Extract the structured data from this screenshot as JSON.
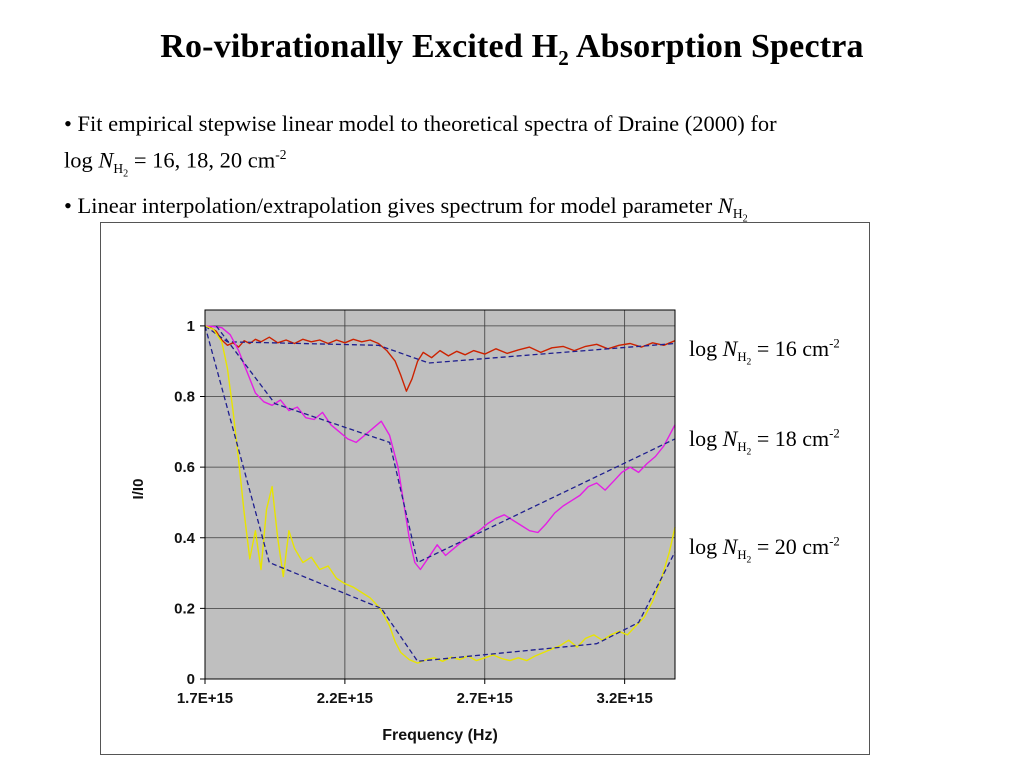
{
  "slide": {
    "title": {
      "pre": "Ro-vibrationally Excited H",
      "sub": "2",
      "post": " Absorption Spectra"
    },
    "bullets": {
      "b1_line1": "• Fit empirical stepwise linear model to theoretical spectra of Draine (2000) for",
      "b1_line2_pre": "log ",
      "b1_N": "N",
      "b1_sub": "H",
      "b1_subsub": "2",
      "b1_line2_mid": " = 16, 18, 20 cm",
      "b1_sup": "-2",
      "b2_pre": "• Linear interpolation/extrapolation gives spectrum for model parameter ",
      "b2_N": "N",
      "b2_sub": "H",
      "b2_subsub": "2"
    }
  },
  "series_labels": [
    {
      "pre": "log ",
      "N": "N",
      "sub": "H",
      "subsub": "2",
      "mid": " = 16 cm",
      "sup": "-2"
    },
    {
      "pre": "log ",
      "N": "N",
      "sub": "H",
      "subsub": "2",
      "mid": " = 18 cm",
      "sup": "-2"
    },
    {
      "pre": "log ",
      "N": "N",
      "sub": "H",
      "subsub": "2",
      "mid": " = 20 cm",
      "sup": "-2"
    }
  ],
  "chart_data": {
    "type": "line",
    "title": "",
    "xlabel": "Frequency (Hz)",
    "ylabel": "I/I0",
    "x_scale_note": "x values in units of 1e15 Hz",
    "xlim": [
      1.7,
      3.38
    ],
    "ylim": [
      0,
      1.045
    ],
    "grid": true,
    "legend_position": "right-annotations",
    "colors": {
      "plot_bg": "#bfbfbf",
      "grid": "#3c3c3c",
      "axis": "#000000"
    },
    "x_ticks": [
      {
        "v": 1.7,
        "label": "1.7E+15"
      },
      {
        "v": 2.2,
        "label": "2.2E+15"
      },
      {
        "v": 2.7,
        "label": "2.7E+15"
      },
      {
        "v": 3.2,
        "label": "3.2E+15"
      }
    ],
    "y_ticks": [
      {
        "v": 1,
        "label": "1"
      },
      {
        "v": 0.8,
        "label": "0.8"
      },
      {
        "v": 0.6,
        "label": "0.6"
      },
      {
        "v": 0.4,
        "label": "0.4"
      },
      {
        "v": 0.2,
        "label": "0.2"
      },
      {
        "v": 0,
        "label": "0"
      }
    ],
    "series": [
      {
        "name": "Draine (2000) spectrum log N_H2 = 16 cm-2",
        "color": "#cc2200",
        "width": 1.4,
        "dash": null,
        "points": [
          [
            1.7,
            1.0
          ],
          [
            1.72,
            0.995
          ],
          [
            1.74,
            0.985
          ],
          [
            1.76,
            0.96
          ],
          [
            1.78,
            0.945
          ],
          [
            1.8,
            0.952
          ],
          [
            1.82,
            0.94
          ],
          [
            1.84,
            0.958
          ],
          [
            1.86,
            0.95
          ],
          [
            1.88,
            0.962
          ],
          [
            1.9,
            0.955
          ],
          [
            1.93,
            0.968
          ],
          [
            1.96,
            0.952
          ],
          [
            1.99,
            0.96
          ],
          [
            2.02,
            0.95
          ],
          [
            2.05,
            0.962
          ],
          [
            2.08,
            0.955
          ],
          [
            2.11,
            0.96
          ],
          [
            2.14,
            0.95
          ],
          [
            2.17,
            0.96
          ],
          [
            2.2,
            0.952
          ],
          [
            2.23,
            0.962
          ],
          [
            2.26,
            0.955
          ],
          [
            2.29,
            0.96
          ],
          [
            2.32,
            0.95
          ],
          [
            2.35,
            0.93
          ],
          [
            2.38,
            0.9
          ],
          [
            2.4,
            0.86
          ],
          [
            2.42,
            0.815
          ],
          [
            2.44,
            0.85
          ],
          [
            2.46,
            0.9
          ],
          [
            2.48,
            0.925
          ],
          [
            2.51,
            0.91
          ],
          [
            2.54,
            0.93
          ],
          [
            2.57,
            0.915
          ],
          [
            2.6,
            0.928
          ],
          [
            2.63,
            0.918
          ],
          [
            2.66,
            0.93
          ],
          [
            2.7,
            0.92
          ],
          [
            2.74,
            0.935
          ],
          [
            2.78,
            0.922
          ],
          [
            2.82,
            0.932
          ],
          [
            2.86,
            0.94
          ],
          [
            2.9,
            0.925
          ],
          [
            2.94,
            0.938
          ],
          [
            2.98,
            0.942
          ],
          [
            3.02,
            0.93
          ],
          [
            3.06,
            0.942
          ],
          [
            3.1,
            0.948
          ],
          [
            3.14,
            0.935
          ],
          [
            3.18,
            0.945
          ],
          [
            3.22,
            0.95
          ],
          [
            3.26,
            0.94
          ],
          [
            3.3,
            0.952
          ],
          [
            3.34,
            0.945
          ],
          [
            3.38,
            0.958
          ]
        ]
      },
      {
        "name": "stepwise linear model log N_H2 = 16",
        "color": "#1f1f8f",
        "width": 1.3,
        "dash": "5,3",
        "points": [
          [
            1.7,
            1.0
          ],
          [
            1.78,
            0.955
          ],
          [
            2.32,
            0.945
          ],
          [
            2.5,
            0.895
          ],
          [
            3.38,
            0.95
          ]
        ]
      },
      {
        "name": "Draine (2000) spectrum log N_H2 = 18 cm-2",
        "color": "#e41ee4",
        "width": 1.4,
        "dash": null,
        "points": [
          [
            1.7,
            1.0
          ],
          [
            1.73,
            0.998
          ],
          [
            1.76,
            0.995
          ],
          [
            1.79,
            0.975
          ],
          [
            1.82,
            0.93
          ],
          [
            1.85,
            0.87
          ],
          [
            1.88,
            0.81
          ],
          [
            1.91,
            0.785
          ],
          [
            1.94,
            0.775
          ],
          [
            1.97,
            0.79
          ],
          [
            2.0,
            0.76
          ],
          [
            2.03,
            0.77
          ],
          [
            2.06,
            0.74
          ],
          [
            2.09,
            0.735
          ],
          [
            2.12,
            0.755
          ],
          [
            2.15,
            0.72
          ],
          [
            2.18,
            0.7
          ],
          [
            2.21,
            0.68
          ],
          [
            2.24,
            0.67
          ],
          [
            2.27,
            0.69
          ],
          [
            2.3,
            0.71
          ],
          [
            2.33,
            0.73
          ],
          [
            2.36,
            0.69
          ],
          [
            2.39,
            0.6
          ],
          [
            2.41,
            0.5
          ],
          [
            2.43,
            0.4
          ],
          [
            2.45,
            0.33
          ],
          [
            2.47,
            0.31
          ],
          [
            2.5,
            0.345
          ],
          [
            2.53,
            0.38
          ],
          [
            2.56,
            0.35
          ],
          [
            2.59,
            0.37
          ],
          [
            2.62,
            0.39
          ],
          [
            2.65,
            0.405
          ],
          [
            2.68,
            0.42
          ],
          [
            2.71,
            0.44
          ],
          [
            2.74,
            0.455
          ],
          [
            2.77,
            0.465
          ],
          [
            2.8,
            0.45
          ],
          [
            2.83,
            0.435
          ],
          [
            2.86,
            0.42
          ],
          [
            2.89,
            0.415
          ],
          [
            2.92,
            0.44
          ],
          [
            2.95,
            0.47
          ],
          [
            2.98,
            0.49
          ],
          [
            3.01,
            0.505
          ],
          [
            3.04,
            0.52
          ],
          [
            3.07,
            0.545
          ],
          [
            3.1,
            0.555
          ],
          [
            3.13,
            0.535
          ],
          [
            3.16,
            0.56
          ],
          [
            3.19,
            0.585
          ],
          [
            3.22,
            0.6
          ],
          [
            3.25,
            0.585
          ],
          [
            3.28,
            0.61
          ],
          [
            3.31,
            0.63
          ],
          [
            3.34,
            0.66
          ],
          [
            3.36,
            0.69
          ],
          [
            3.38,
            0.72
          ]
        ]
      },
      {
        "name": "stepwise linear model log N_H2 = 18",
        "color": "#1f1f8f",
        "width": 1.3,
        "dash": "5,3",
        "points": [
          [
            1.74,
            1.0
          ],
          [
            1.95,
            0.78
          ],
          [
            2.36,
            0.67
          ],
          [
            2.46,
            0.33
          ],
          [
            3.38,
            0.68
          ]
        ]
      },
      {
        "name": "Draine (2000) spectrum log N_H2 = 20 cm-2",
        "color": "#e8e400",
        "width": 1.4,
        "dash": null,
        "points": [
          [
            1.7,
            1.0
          ],
          [
            1.73,
            0.99
          ],
          [
            1.76,
            0.955
          ],
          [
            1.78,
            0.88
          ],
          [
            1.8,
            0.76
          ],
          [
            1.82,
            0.62
          ],
          [
            1.84,
            0.47
          ],
          [
            1.86,
            0.34
          ],
          [
            1.88,
            0.42
          ],
          [
            1.9,
            0.31
          ],
          [
            1.92,
            0.48
          ],
          [
            1.94,
            0.545
          ],
          [
            1.96,
            0.4
          ],
          [
            1.98,
            0.29
          ],
          [
            2.0,
            0.42
          ],
          [
            2.02,
            0.37
          ],
          [
            2.05,
            0.33
          ],
          [
            2.08,
            0.345
          ],
          [
            2.11,
            0.31
          ],
          [
            2.14,
            0.32
          ],
          [
            2.17,
            0.285
          ],
          [
            2.2,
            0.27
          ],
          [
            2.23,
            0.26
          ],
          [
            2.26,
            0.245
          ],
          [
            2.29,
            0.23
          ],
          [
            2.32,
            0.205
          ],
          [
            2.34,
            0.18
          ],
          [
            2.36,
            0.15
          ],
          [
            2.38,
            0.105
          ],
          [
            2.4,
            0.075
          ],
          [
            2.43,
            0.055
          ],
          [
            2.46,
            0.045
          ],
          [
            2.49,
            0.055
          ],
          [
            2.52,
            0.06
          ],
          [
            2.55,
            0.05
          ],
          [
            2.58,
            0.062
          ],
          [
            2.61,
            0.055
          ],
          [
            2.64,
            0.065
          ],
          [
            2.67,
            0.052
          ],
          [
            2.7,
            0.06
          ],
          [
            2.73,
            0.068
          ],
          [
            2.76,
            0.058
          ],
          [
            2.79,
            0.052
          ],
          [
            2.82,
            0.06
          ],
          [
            2.85,
            0.052
          ],
          [
            2.88,
            0.065
          ],
          [
            2.91,
            0.075
          ],
          [
            2.94,
            0.085
          ],
          [
            2.97,
            0.095
          ],
          [
            3.0,
            0.11
          ],
          [
            3.03,
            0.09
          ],
          [
            3.06,
            0.115
          ],
          [
            3.09,
            0.125
          ],
          [
            3.12,
            0.11
          ],
          [
            3.15,
            0.125
          ],
          [
            3.18,
            0.135
          ],
          [
            3.21,
            0.125
          ],
          [
            3.24,
            0.15
          ],
          [
            3.27,
            0.175
          ],
          [
            3.3,
            0.22
          ],
          [
            3.33,
            0.28
          ],
          [
            3.36,
            0.36
          ],
          [
            3.38,
            0.43
          ]
        ]
      },
      {
        "name": "stepwise linear model log N_H2 = 20",
        "color": "#1f1f8f",
        "width": 1.3,
        "dash": "5,3",
        "points": [
          [
            1.7,
            1.0
          ],
          [
            1.93,
            0.33
          ],
          [
            2.33,
            0.2
          ],
          [
            2.46,
            0.05
          ],
          [
            3.1,
            0.1
          ],
          [
            3.25,
            0.16
          ],
          [
            3.38,
            0.36
          ]
        ]
      }
    ]
  }
}
